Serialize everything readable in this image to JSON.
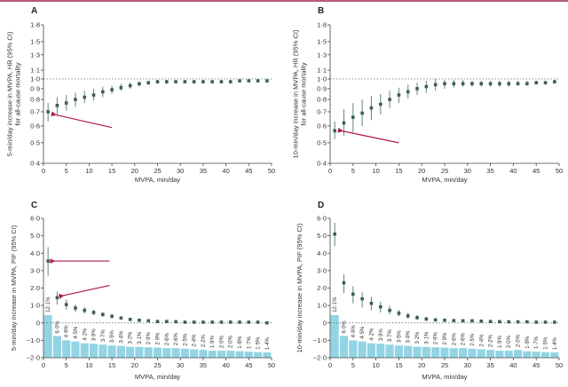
{
  "colors": {
    "point": "#3d5c5c",
    "errorbar": "#6f8f8a",
    "bar": "#92d4e4",
    "arrow": "#b2184c",
    "refline": "#6a8a88",
    "axis": "#444444",
    "topline": "#b35c7d"
  },
  "chart_data": [
    {
      "panel": "A",
      "type": "scatter",
      "scale": "log",
      "ylabel_lines": [
        "5-min/day increase in MVPA, HR (95% CI)",
        "for all-cause mortality"
      ],
      "xlabel": "MVPA, min/day",
      "xlim": [
        0,
        50
      ],
      "xticks": [
        0,
        5,
        10,
        15,
        20,
        25,
        30,
        35,
        40,
        45,
        50
      ],
      "ylim": [
        0.4,
        1.8
      ],
      "yticks": [
        0.4,
        0.5,
        0.6,
        0.7,
        0.8,
        0.9,
        1.0,
        1.1,
        1.3,
        1.5,
        1.8
      ],
      "ytick_labels": [
        "0·4",
        "0·5",
        "0·6",
        "0·7",
        "0·8",
        "0·9",
        "1·0",
        "1·1",
        "1·3",
        "1·5",
        "1·8"
      ],
      "reference_line": 1.0,
      "x": [
        1,
        3,
        5,
        7,
        9,
        11,
        13,
        15,
        17,
        19,
        21,
        23,
        25,
        27,
        29,
        31,
        33,
        35,
        37,
        39,
        41,
        43,
        45,
        47,
        49
      ],
      "y": [
        0.7,
        0.75,
        0.77,
        0.8,
        0.82,
        0.84,
        0.87,
        0.89,
        0.91,
        0.93,
        0.95,
        0.96,
        0.97,
        0.97,
        0.97,
        0.97,
        0.97,
        0.97,
        0.97,
        0.97,
        0.97,
        0.98,
        0.98,
        0.98,
        0.98
      ],
      "lower": [
        0.63,
        0.68,
        0.71,
        0.74,
        0.77,
        0.79,
        0.82,
        0.85,
        0.88,
        0.9,
        0.92,
        0.94,
        0.95,
        0.95,
        0.96,
        0.96,
        0.96,
        0.96,
        0.96,
        0.96,
        0.96,
        0.97,
        0.97,
        0.97,
        0.97
      ],
      "upper": [
        0.77,
        0.82,
        0.84,
        0.86,
        0.88,
        0.9,
        0.92,
        0.93,
        0.95,
        0.96,
        0.97,
        0.98,
        0.99,
        0.99,
        0.99,
        0.99,
        0.99,
        0.99,
        0.99,
        0.99,
        0.99,
        0.99,
        0.99,
        0.99,
        0.99
      ],
      "arrows": [
        {
          "from": [
            15,
            0.59
          ],
          "to": [
            2.3,
            0.68
          ]
        }
      ]
    },
    {
      "panel": "B",
      "type": "scatter",
      "scale": "log",
      "ylabel_lines": [
        "10-min/day increase in MVPA, HR (95% CI)",
        "for all-cause mortality"
      ],
      "xlabel": "MVPA, min/day",
      "xlim": [
        0,
        50
      ],
      "xticks": [
        0,
        5,
        10,
        15,
        20,
        25,
        30,
        35,
        40,
        45,
        50
      ],
      "ylim": [
        0.4,
        1.8
      ],
      "yticks": [
        0.4,
        0.5,
        0.6,
        0.7,
        0.8,
        0.9,
        1.0,
        1.1,
        1.3,
        1.5,
        1.8
      ],
      "ytick_labels": [
        "0·4",
        "0·5",
        "0·6",
        "0·7",
        "0·8",
        "0·9",
        "1·0",
        "1·1",
        "1·3",
        "1·5",
        "1·8"
      ],
      "reference_line": 1.0,
      "x": [
        1,
        3,
        5,
        7,
        9,
        11,
        13,
        15,
        17,
        19,
        21,
        23,
        25,
        27,
        29,
        31,
        33,
        35,
        37,
        39,
        41,
        43,
        45,
        47,
        49
      ],
      "y": [
        0.57,
        0.62,
        0.66,
        0.69,
        0.73,
        0.76,
        0.8,
        0.84,
        0.87,
        0.9,
        0.92,
        0.94,
        0.95,
        0.95,
        0.95,
        0.95,
        0.95,
        0.95,
        0.95,
        0.95,
        0.95,
        0.95,
        0.96,
        0.96,
        0.97
      ],
      "lower": [
        0.52,
        0.54,
        0.56,
        0.6,
        0.64,
        0.68,
        0.73,
        0.77,
        0.81,
        0.84,
        0.86,
        0.88,
        0.9,
        0.91,
        0.92,
        0.92,
        0.92,
        0.92,
        0.92,
        0.92,
        0.93,
        0.93,
        0.94,
        0.94,
        0.95
      ],
      "upper": [
        0.63,
        0.72,
        0.77,
        0.8,
        0.83,
        0.85,
        0.88,
        0.91,
        0.94,
        0.96,
        0.98,
        1.0,
        0.99,
        0.99,
        0.99,
        0.98,
        0.98,
        0.98,
        0.98,
        0.98,
        0.98,
        0.98,
        0.98,
        0.98,
        0.99
      ],
      "arrows": [
        {
          "from": [
            15,
            0.5
          ],
          "to": [
            2.3,
            0.57
          ]
        }
      ]
    },
    {
      "panel": "C",
      "type": "bar+scatter",
      "scale": "linear",
      "ylabel_lines": [
        "5-min/day increase in MVPA, PIF (95% CI)"
      ],
      "xlabel": "MVPA, min/day",
      "xlim": [
        0,
        50
      ],
      "xticks": [
        0,
        5,
        10,
        15,
        20,
        25,
        30,
        35,
        40,
        45,
        50
      ],
      "ylim": [
        -2.0,
        6.0
      ],
      "yticks": [
        -2.0,
        -1.0,
        0,
        1.0,
        2.0,
        3.0,
        4.0,
        5.0,
        6.0
      ],
      "ytick_labels": [
        "−2·0",
        "−1·0",
        "0",
        "1·0",
        "2·0",
        "3·0",
        "4·0",
        "5·0",
        "6·0"
      ],
      "reference_line": 0,
      "x": [
        1,
        3,
        5,
        7,
        9,
        11,
        13,
        15,
        17,
        19,
        21,
        23,
        25,
        27,
        29,
        31,
        33,
        35,
        37,
        39,
        41,
        43,
        45,
        47,
        49
      ],
      "y": [
        3.55,
        1.45,
        1.05,
        0.85,
        0.72,
        0.6,
        0.48,
        0.38,
        0.28,
        0.2,
        0.15,
        0.12,
        0.08,
        0.08,
        0.07,
        0.04,
        0.04,
        0.04,
        0.04,
        0.04,
        0.04,
        0.04,
        0.04,
        0.04,
        0.0
      ],
      "lower": [
        2.7,
        1.05,
        0.75,
        0.62,
        0.55,
        0.45,
        0.35,
        0.27,
        0.2,
        0.13,
        0.1,
        0.07,
        0.04,
        0.04,
        0.03,
        0.01,
        0.01,
        0.01,
        0.01,
        0.01,
        0.01,
        0.01,
        0.01,
        0.01,
        -0.03
      ],
      "upper": [
        4.35,
        1.8,
        1.35,
        1.05,
        0.9,
        0.75,
        0.62,
        0.5,
        0.38,
        0.28,
        0.22,
        0.17,
        0.12,
        0.12,
        0.11,
        0.07,
        0.07,
        0.07,
        0.07,
        0.07,
        0.07,
        0.07,
        0.07,
        0.07,
        0.03
      ],
      "bars_percent": [
        12.1,
        6.0,
        4.9,
        4.5,
        4.2,
        3.9,
        3.7,
        3.5,
        3.4,
        3.2,
        3.1,
        2.9,
        2.9,
        2.6,
        2.6,
        2.5,
        2.4,
        2.2,
        1.9,
        2.0,
        2.0,
        1.8,
        1.7,
        1.5,
        1.4
      ],
      "bar_labels": [
        "12·1%",
        "6·0%",
        "4·9%",
        "4·5%",
        "4·2%",
        "3·9%",
        "3·7%",
        "3·5%",
        "3·4%",
        "3·2%",
        "3·1%",
        "2·9%",
        "2·9%",
        "2·6%",
        "2·6%",
        "2·5%",
        "2·4%",
        "2·2%",
        "1·9%",
        "2·0%",
        "2·0%",
        "1·8%",
        "1·7%",
        "1·5%",
        "1·4%"
      ],
      "bar_tops": [
        0.45,
        -0.75,
        -1.0,
        -1.07,
        -1.17,
        -1.2,
        -1.25,
        -1.3,
        -1.32,
        -1.37,
        -1.38,
        -1.4,
        -1.42,
        -1.45,
        -1.45,
        -1.48,
        -1.52,
        -1.55,
        -1.6,
        -1.6,
        -1.6,
        -1.63,
        -1.65,
        -1.68,
        -1.7
      ],
      "arrows": [
        {
          "from": [
            14.5,
            3.55
          ],
          "to": [
            2.0,
            3.55
          ]
        },
        {
          "from": [
            14.5,
            2.15
          ],
          "to": [
            4.0,
            1.55
          ]
        }
      ]
    },
    {
      "panel": "D",
      "type": "bar+scatter",
      "scale": "linear",
      "ylabel_lines": [
        "10-min/day increase in MVPA, PIF (95% CI)"
      ],
      "xlabel": "MVPA, min/day",
      "xlim": [
        0,
        50
      ],
      "xticks": [
        0,
        5,
        10,
        15,
        20,
        25,
        30,
        35,
        40,
        45,
        50
      ],
      "ylim": [
        -2.0,
        6.0
      ],
      "yticks": [
        -2.0,
        -1.0,
        0,
        1.0,
        2.0,
        3.0,
        4.0,
        5.0,
        6.0
      ],
      "ytick_labels": [
        "−2·0",
        "−1·0",
        "0",
        "1·0",
        "2·0",
        "3·0",
        "4·0",
        "5·0",
        "6·0"
      ],
      "reference_line": 0,
      "x": [
        1,
        3,
        5,
        7,
        9,
        11,
        13,
        15,
        17,
        19,
        21,
        23,
        25,
        27,
        29,
        31,
        33,
        35,
        37,
        39,
        41,
        43,
        45,
        47,
        49
      ],
      "y": [
        5.1,
        2.3,
        1.65,
        1.38,
        1.12,
        0.92,
        0.72,
        0.55,
        0.4,
        0.3,
        0.22,
        0.17,
        0.15,
        0.13,
        0.12,
        0.12,
        0.1,
        0.08,
        0.07,
        0.06,
        0.06,
        0.06,
        0.04,
        0.04,
        0.04
      ],
      "lower": [
        4.4,
        1.7,
        1.12,
        0.88,
        0.72,
        0.6,
        0.48,
        0.38,
        0.25,
        0.17,
        0.12,
        0.08,
        0.08,
        0.07,
        0.07,
        0.07,
        0.05,
        0.04,
        0.03,
        0.03,
        0.03,
        0.03,
        0.01,
        0.01,
        0.01
      ],
      "upper": [
        5.75,
        2.8,
        2.1,
        1.75,
        1.5,
        1.22,
        0.98,
        0.75,
        0.58,
        0.45,
        0.34,
        0.27,
        0.22,
        0.2,
        0.18,
        0.17,
        0.15,
        0.12,
        0.11,
        0.09,
        0.09,
        0.09,
        0.07,
        0.07,
        0.07
      ],
      "bars_percent": [
        12.1,
        6.0,
        4.9,
        4.5,
        4.2,
        3.9,
        3.7,
        3.5,
        3.4,
        3.2,
        3.1,
        2.9,
        2.9,
        2.6,
        2.6,
        2.5,
        2.4,
        2.2,
        1.9,
        2.0,
        2.0,
        1.8,
        1.7,
        1.5,
        1.4
      ],
      "bar_labels": [
        "12·1%",
        "6·0%",
        "4·9%",
        "4·5%",
        "4·2%",
        "3·9%",
        "3·7%",
        "3·5%",
        "3·4%",
        "3·2%",
        "3·1%",
        "2·9%",
        "2·9%",
        "2·6%",
        "2·6%",
        "2·5%",
        "2·4%",
        "2·2%",
        "1·9%",
        "2·0%",
        "2·0%",
        "1·8%",
        "1·7%",
        "1·5%",
        "1·4%"
      ],
      "bar_tops": [
        0.45,
        -0.75,
        -1.0,
        -1.07,
        -1.17,
        -1.2,
        -1.25,
        -1.3,
        -1.32,
        -1.37,
        -1.38,
        -1.4,
        -1.42,
        -1.45,
        -1.45,
        -1.48,
        -1.52,
        -1.55,
        -1.6,
        -1.6,
        -1.55,
        -1.63,
        -1.65,
        -1.68,
        -1.7
      ],
      "arrows": []
    }
  ]
}
